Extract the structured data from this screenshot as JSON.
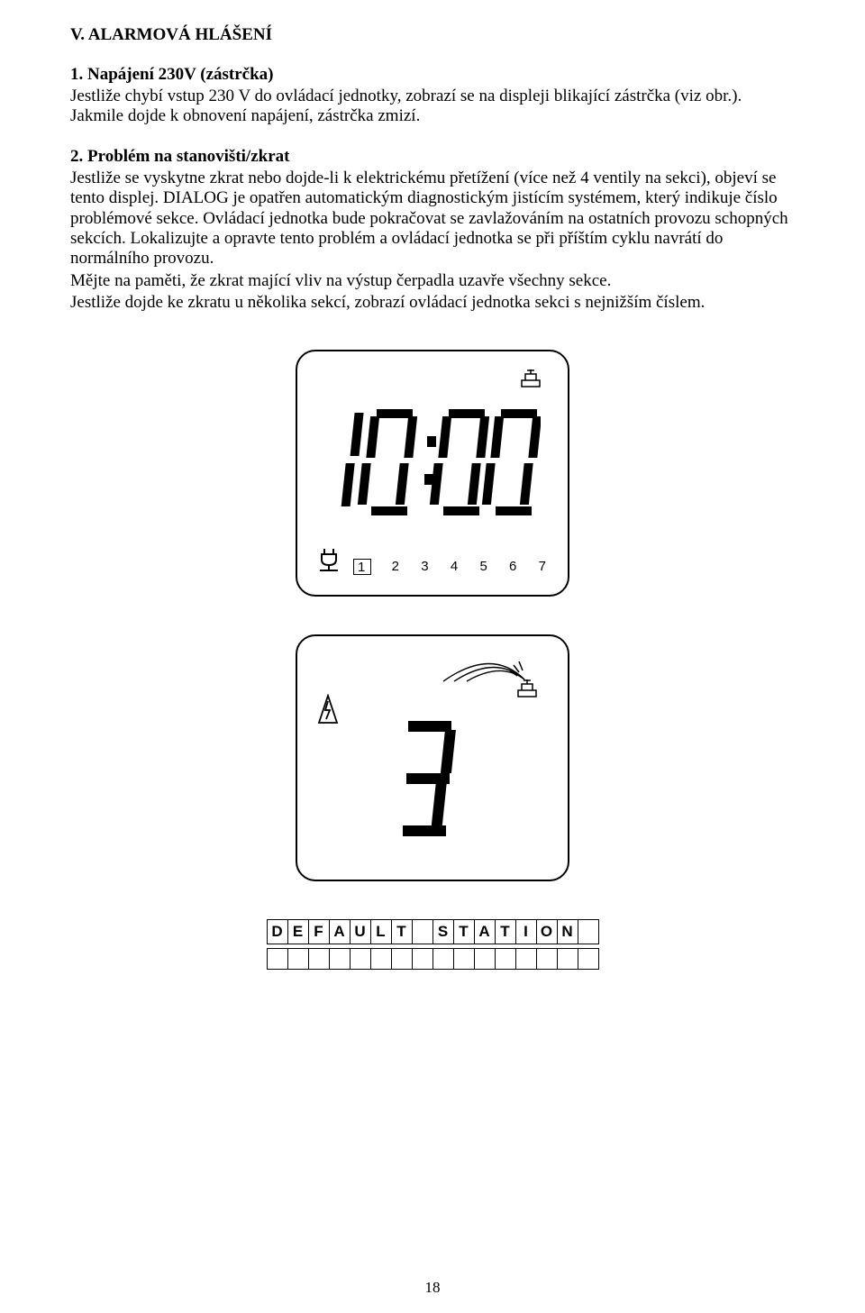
{
  "title": "V. ALARMOVÁ HLÁŠENÍ",
  "s1": {
    "heading": "1. Napájení 230V (zástrčka)",
    "text": "Jestliže chybí vstup 230 V do ovládací jednotky, zobrazí se na displeji blikající zástrčka (viz obr.). Jakmile dojde k obnovení napájení, zástrčka zmizí."
  },
  "s2": {
    "heading": "2. Problém na stanovišti/zkrat",
    "p1": "Jestliže se vyskytne zkrat nebo dojde-li k elektrickému přetížení (více než 4 ventily na sekci), objeví se tento displej. DIALOG je opatřen automatickým diagnostickým jistícím systémem, který indikuje číslo problémové sekce. Ovládací jednotka bude pokračovat se zavlažováním na ostatních provozu schopných sekcích. Lokalizujte a opravte tento problém a ovládací jednotka se při příštím cyklu navrátí do normálního provozu.",
    "p2": "Mějte na paměti, že zkrat mající vliv na výstup čerpadla uzavře všechny sekce.",
    "p3": "Jestliže dojde ke zkratu u několika sekcí, zobrazí ovládací jednotka sekci s nejnižším číslem."
  },
  "fig1": {
    "time_colors": {
      "seg": "#000000"
    },
    "numbers": [
      "1",
      "2",
      "3",
      "4",
      "5",
      "6",
      "7"
    ],
    "boxed_index": 0
  },
  "fig3": {
    "row1": [
      "D",
      "E",
      "F",
      "A",
      "U",
      "L",
      "T",
      "",
      "S",
      "T",
      "A",
      "T",
      "I",
      "O",
      "N",
      ""
    ],
    "row2_cols": 16
  },
  "pagenum": "18"
}
